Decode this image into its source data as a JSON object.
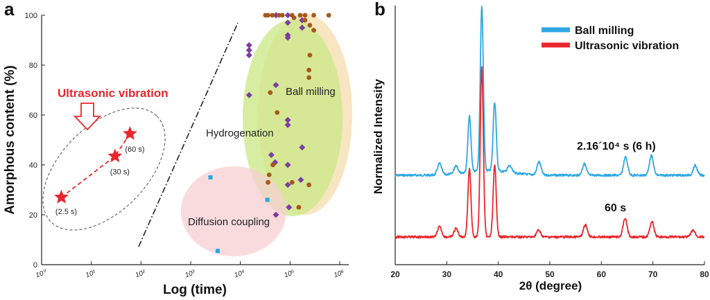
{
  "colors": {
    "ultrasonic_red": "#e8262b",
    "ball_milling_blue": "#2fa7e4",
    "purple_marker": "#7b3fa0",
    "brown_marker": "#a45a1c",
    "cyan_marker": "#2aa7e0",
    "green_region": "#cde88a",
    "orange_region": "#f5d7a0",
    "pink_region": "#f7cfd3",
    "axis": "#222222"
  },
  "chart_data": [
    {
      "panel_label": "a",
      "type": "scatter",
      "xlabel": "Log (time)",
      "ylabel": "Amorphous content (%)",
      "x_scale": "log",
      "xlim": [
        1,
        1000000
      ],
      "ylim": [
        0,
        100
      ],
      "x_tick_labels": [
        "10⁰",
        "10¹",
        "10²",
        "10³",
        "10⁴",
        "10⁵",
        "10⁶"
      ],
      "y_tick_labels": [
        "0",
        "20",
        "40",
        "60",
        "80",
        "100"
      ],
      "annotations": {
        "ultrasonic_title": "Ultrasonic vibration",
        "ball_milling": "Ball milling",
        "hydrogenation": "Hydrogenation",
        "diffusion_coupling": "Diffusion coupling"
      },
      "ultrasonic_points": [
        {
          "x": 2.5,
          "y": 27,
          "label": "(2.5 s)"
        },
        {
          "x": 30,
          "y": 43.5,
          "label": "(30 s)"
        },
        {
          "x": 60,
          "y": 52.5,
          "label": "(60 s)"
        }
      ],
      "ball_milling_points": [
        [
          15000,
          88
        ],
        [
          15000,
          86
        ],
        [
          15000,
          84
        ],
        [
          15000,
          68
        ],
        [
          52000,
          100
        ],
        [
          52000,
          72
        ],
        [
          42000,
          44
        ],
        [
          50000,
          41
        ],
        [
          52000,
          20
        ],
        [
          90000,
          100
        ],
        [
          90000,
          97
        ],
        [
          90000,
          92
        ],
        [
          90000,
          91
        ],
        [
          90000,
          58
        ],
        [
          90000,
          56
        ],
        [
          90000,
          40
        ],
        [
          90000,
          32
        ],
        [
          95000,
          23
        ],
        [
          175000,
          98
        ],
        [
          175000,
          95
        ],
        [
          175000,
          47
        ],
        [
          165000,
          34
        ]
      ],
      "hydrogenation_points": [
        [
          32000,
          100
        ],
        [
          36000,
          100
        ],
        [
          44000,
          100
        ],
        [
          60000,
          100
        ],
        [
          70000,
          100
        ],
        [
          110000,
          100
        ],
        [
          120000,
          99
        ],
        [
          160000,
          100
        ],
        [
          200000,
          100
        ],
        [
          300000,
          100
        ],
        [
          600000,
          100
        ],
        [
          200000,
          98
        ],
        [
          250000,
          96
        ],
        [
          300000,
          94
        ],
        [
          250000,
          84
        ],
        [
          240000,
          78
        ],
        [
          240000,
          75
        ],
        [
          40000,
          69
        ],
        [
          55000,
          61
        ],
        [
          45000,
          40
        ],
        [
          38000,
          36
        ],
        [
          36000,
          33
        ],
        [
          110000,
          33
        ],
        [
          240000,
          32
        ],
        [
          150000,
          23
        ]
      ],
      "diffusion_coupling_points": [
        [
          2500,
          35
        ],
        [
          35000,
          26
        ],
        [
          3500,
          5.5
        ]
      ]
    },
    {
      "panel_label": "b",
      "type": "line",
      "xlabel": "2θ (degree)",
      "ylabel": "Normalized Intensity",
      "xlim": [
        20,
        80
      ],
      "x_tick_labels": [
        "20",
        "30",
        "40",
        "50",
        "60",
        "70",
        "80"
      ],
      "series": [
        {
          "name": "Ball milling",
          "curve_label": "2.16´10⁴ s (6 h)",
          "baseline": 1.0,
          "peaks": [
            [
              28.6,
              0.07
            ],
            [
              31.8,
              0.05
            ],
            [
              34.4,
              0.34
            ],
            [
              36.8,
              1.0
            ],
            [
              39.3,
              0.42
            ],
            [
              42.2,
              0.04
            ],
            [
              47.9,
              0.08
            ],
            [
              56.7,
              0.07
            ],
            [
              64.7,
              0.11
            ],
            [
              69.7,
              0.12
            ],
            [
              78.2,
              0.06
            ]
          ]
        },
        {
          "name": "Ultrasonic vibration",
          "curve_label": "60 s",
          "baseline": 0.0,
          "peaks": [
            [
              28.6,
              0.06
            ],
            [
              31.8,
              0.05
            ],
            [
              34.4,
              0.4
            ],
            [
              36.8,
              1.0
            ],
            [
              39.3,
              0.42
            ],
            [
              47.8,
              0.04
            ],
            [
              56.9,
              0.07
            ],
            [
              64.6,
              0.11
            ],
            [
              69.8,
              0.09
            ],
            [
              77.8,
              0.04
            ]
          ]
        }
      ]
    }
  ]
}
